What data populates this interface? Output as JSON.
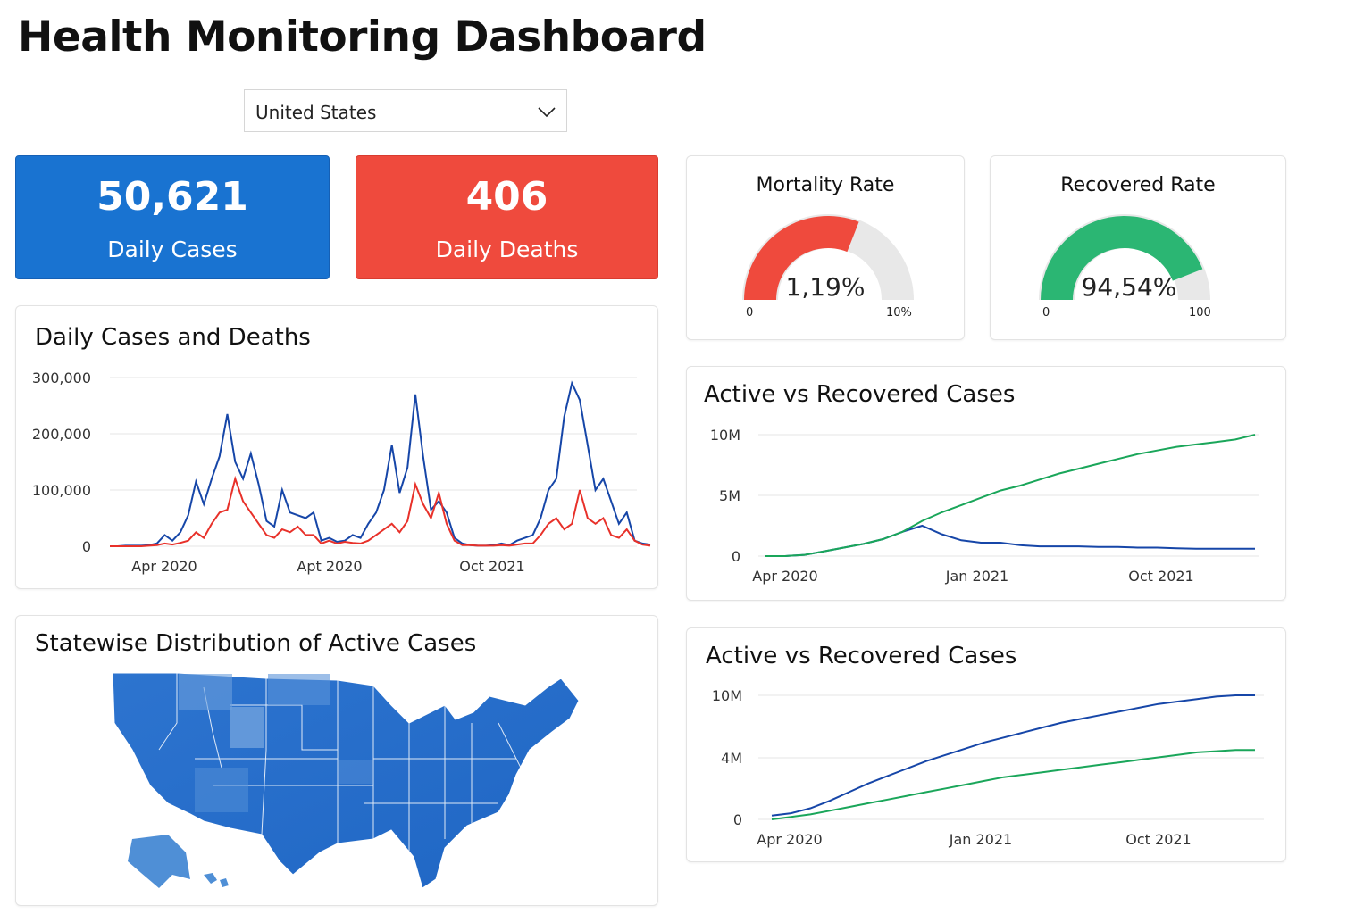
{
  "page": {
    "title": "Health Monitoring Dashboard"
  },
  "filter": {
    "selected": "United States",
    "icon": "chevron-down-icon"
  },
  "kpis": {
    "cases": {
      "value": "50,621",
      "label": "Daily Cases",
      "color": "#1973d1"
    },
    "deaths": {
      "value": "406",
      "label": "Daily Deaths",
      "color": "#ef4a3d"
    }
  },
  "gauges": {
    "mortality": {
      "title": "Mortality Rate",
      "value_label": "1,19%",
      "fill_fraction": 0.62,
      "min_label": "0",
      "max_label": "10%",
      "color": "#ef4a3d"
    },
    "recovered": {
      "title": "Recovered Rate",
      "value_label": "94,54%",
      "fill_fraction": 0.88,
      "min_label": "0",
      "max_label": "100",
      "color": "#2bb673"
    }
  },
  "daily_chart": {
    "title": "Daily Cases and Deaths",
    "y_ticks": [
      "300,000",
      "200,000",
      "100,000",
      "0"
    ],
    "x_ticks": [
      "Apr 2020",
      "Apt 2020",
      "Oct 2021"
    ]
  },
  "map": {
    "title": "Statewise Distribution of Active Cases"
  },
  "active_chart_1": {
    "title": "Active vs Recovered Cases",
    "y_ticks": [
      "10M",
      "5M",
      "0"
    ],
    "x_ticks": [
      "Apr 2020",
      "Jan 2021",
      "Oct 2021"
    ]
  },
  "active_chart_2": {
    "title": "Active vs Recovered Cases",
    "y_ticks": [
      "10M",
      "4M",
      "0"
    ],
    "x_ticks": [
      "Apr 2020",
      "Jan 2021",
      "Oct 2021"
    ]
  },
  "chart_data": [
    {
      "type": "line",
      "title": "Daily Cases and Deaths",
      "ylim": [
        0,
        300000
      ],
      "x": [
        0,
        1,
        2,
        3,
        4,
        5,
        6,
        7,
        8,
        9,
        10,
        11,
        12,
        13,
        14,
        15,
        16,
        17,
        18,
        19,
        20,
        21,
        22,
        23,
        24,
        25,
        26,
        27,
        28,
        29,
        30,
        31,
        32,
        33,
        34,
        35,
        36,
        37,
        38,
        39,
        40,
        41,
        42,
        43,
        44,
        45,
        46,
        47,
        48,
        49,
        50,
        51,
        52,
        53,
        54,
        55,
        56,
        57,
        58,
        59,
        60,
        61,
        62,
        63,
        64,
        65,
        66,
        67,
        68,
        69
      ],
      "x_tick_positions": [
        6,
        28,
        49
      ],
      "series": [
        {
          "color": "#1646a8",
          "values": [
            0,
            0,
            1000,
            1000,
            1000,
            2000,
            5000,
            20000,
            10000,
            25000,
            55000,
            115000,
            75000,
            120000,
            160000,
            235000,
            150000,
            120000,
            165000,
            110000,
            45000,
            35000,
            100000,
            60000,
            55000,
            50000,
            60000,
            10000,
            15000,
            8000,
            10000,
            20000,
            15000,
            40000,
            60000,
            100000,
            180000,
            95000,
            140000,
            270000,
            160000,
            65000,
            80000,
            60000,
            15000,
            5000,
            2000,
            1000,
            1000,
            2000,
            5000,
            2000,
            10000,
            15000,
            20000,
            50000,
            100000,
            120000,
            230000,
            290000,
            260000,
            180000,
            100000,
            120000,
            80000,
            40000,
            60000,
            10000,
            5000,
            3000
          ]
        },
        {
          "color": "#e8312a",
          "values": [
            0,
            0,
            0,
            0,
            0,
            1000,
            2000,
            5000,
            3000,
            6000,
            10000,
            25000,
            15000,
            40000,
            60000,
            65000,
            120000,
            80000,
            60000,
            40000,
            20000,
            15000,
            30000,
            25000,
            35000,
            20000,
            20000,
            5000,
            10000,
            5000,
            8000,
            6000,
            5000,
            10000,
            20000,
            30000,
            40000,
            25000,
            45000,
            110000,
            75000,
            50000,
            95000,
            40000,
            10000,
            2000,
            2000,
            1000,
            1000,
            1000,
            2000,
            1000,
            3000,
            5000,
            5000,
            20000,
            40000,
            50000,
            30000,
            40000,
            100000,
            50000,
            40000,
            50000,
            20000,
            15000,
            30000,
            10000,
            3000,
            1000
          ]
        }
      ]
    },
    {
      "type": "line",
      "title": "Active vs Recovered Cases",
      "ylim": [
        0,
        10000000
      ],
      "x": [
        0,
        1,
        2,
        3,
        4,
        5,
        6,
        7,
        8,
        9,
        10,
        11,
        12,
        13,
        14,
        15,
        16,
        17,
        18,
        19,
        20,
        21,
        22,
        23,
        24,
        25
      ],
      "x_tick_positions": [
        1,
        11,
        20
      ],
      "series": [
        {
          "color": "#1646a8",
          "values": [
            0,
            0,
            100000,
            400000,
            700000,
            1000000,
            1400000,
            2000000,
            2500000,
            1800000,
            1300000,
            1100000,
            1100000,
            900000,
            800000,
            800000,
            800000,
            750000,
            750000,
            700000,
            700000,
            650000,
            600000,
            600000,
            600000,
            600000
          ]
        },
        {
          "color": "#1aa65a",
          "values": [
            0,
            0,
            100000,
            400000,
            700000,
            1000000,
            1400000,
            2000000,
            2900000,
            3600000,
            4200000,
            4800000,
            5400000,
            5800000,
            6300000,
            6800000,
            7200000,
            7600000,
            8000000,
            8400000,
            8700000,
            9000000,
            9200000,
            9400000,
            9600000,
            10000000
          ]
        }
      ]
    },
    {
      "type": "line",
      "title": "Active vs Recovered Cases",
      "ylim": [
        0,
        10000000
      ],
      "x": [
        0,
        1,
        2,
        3,
        4,
        5,
        6,
        7,
        8,
        9,
        10,
        11,
        12,
        13,
        14,
        15,
        16,
        17,
        18,
        19,
        20,
        21,
        22,
        23,
        24,
        25
      ],
      "x_tick_positions": [
        1,
        11,
        20
      ],
      "series": [
        {
          "color": "#1646a8",
          "values": [
            300000,
            500000,
            900000,
            1500000,
            2200000,
            2900000,
            3500000,
            4100000,
            4700000,
            5200000,
            5700000,
            6200000,
            6600000,
            7000000,
            7400000,
            7800000,
            8100000,
            8400000,
            8700000,
            9000000,
            9300000,
            9500000,
            9700000,
            9900000,
            10000000,
            10000000
          ]
        },
        {
          "color": "#1aa65a",
          "values": [
            0,
            200000,
            400000,
            700000,
            1000000,
            1300000,
            1600000,
            1900000,
            2200000,
            2500000,
            2800000,
            3100000,
            3400000,
            3600000,
            3800000,
            4000000,
            4200000,
            4400000,
            4600000,
            4800000,
            5000000,
            5200000,
            5400000,
            5500000,
            5600000,
            5600000
          ]
        }
      ]
    }
  ]
}
